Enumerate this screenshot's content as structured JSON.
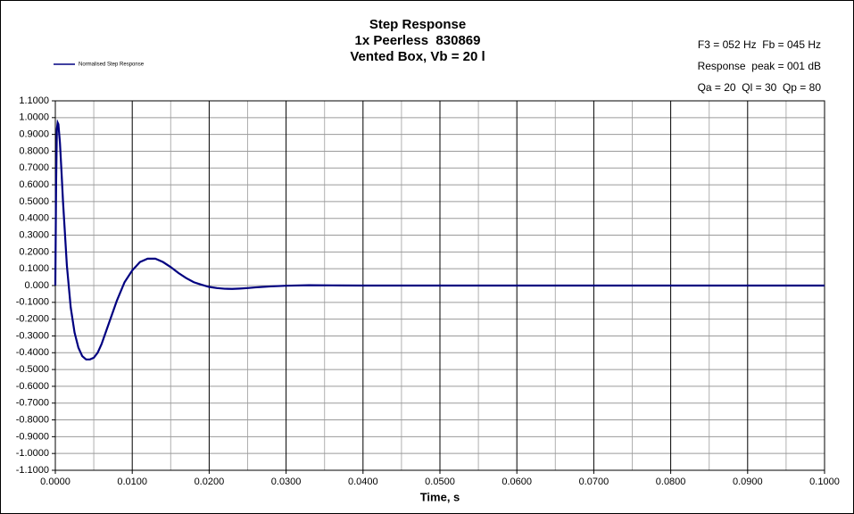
{
  "chart_data": {
    "type": "line",
    "title": [
      "Step Response",
      "1x Peerless  830869",
      "Vented Box, Vb = 20 l"
    ],
    "annotations": [
      "F3 = 052 Hz  Fb = 045 Hz",
      "Response  peak = 001 dB",
      "Qa = 20  Ql = 30  Qp = 80"
    ],
    "x_label": "Time, s",
    "legend": "top-left",
    "grid": true,
    "x": [
      0,
      0.0001,
      0.0002,
      0.0003,
      0.0004,
      0.0006,
      0.0008,
      0.001,
      0.0015,
      0.002,
      0.0025,
      0.003,
      0.0035,
      0.004,
      0.0045,
      0.005,
      0.0055,
      0.006,
      0.007,
      0.008,
      0.009,
      0.01,
      0.011,
      0.012,
      0.013,
      0.014,
      0.015,
      0.016,
      0.017,
      0.018,
      0.019,
      0.02,
      0.021,
      0.022,
      0.023,
      0.024,
      0.025,
      0.026,
      0.028,
      0.03,
      0.033,
      0.036,
      0.04,
      0.05,
      0.06,
      0.07,
      0.08,
      0.09,
      0.1
    ],
    "series": [
      {
        "name": "Normalised Step Response",
        "color": "#000080",
        "values": [
          0,
          0.6,
          0.93,
          0.97,
          0.96,
          0.85,
          0.68,
          0.5,
          0.12,
          -0.13,
          -0.28,
          -0.37,
          -0.42,
          -0.44,
          -0.44,
          -0.43,
          -0.4,
          -0.35,
          -0.22,
          -0.09,
          0.02,
          0.09,
          0.14,
          0.16,
          0.16,
          0.14,
          0.11,
          0.075,
          0.045,
          0.02,
          0.005,
          -0.008,
          -0.015,
          -0.019,
          -0.02,
          -0.018,
          -0.015,
          -0.011,
          -0.005,
          -0.001,
          0.002,
          0.001,
          0,
          0,
          0,
          0,
          0,
          0,
          0
        ]
      }
    ],
    "xlim": [
      0,
      0.1
    ],
    "ylim": [
      -1.1,
      1.1
    ],
    "xticks": [
      {
        "value": 0,
        "label": "0.0000"
      },
      {
        "value": 0.01,
        "label": "0.0100"
      },
      {
        "value": 0.02,
        "label": "0.0200"
      },
      {
        "value": 0.03,
        "label": "0.0300"
      },
      {
        "value": 0.04,
        "label": "0.0400"
      },
      {
        "value": 0.05,
        "label": "0.0500"
      },
      {
        "value": 0.06,
        "label": "0.0600"
      },
      {
        "value": 0.07,
        "label": "0.0700"
      },
      {
        "value": 0.08,
        "label": "0.0800"
      },
      {
        "value": 0.09,
        "label": "0.0900"
      },
      {
        "value": 0.1,
        "label": "0.1000"
      }
    ],
    "x_minor_ticks": [
      0.005,
      0.015,
      0.025,
      0.035,
      0.045,
      0.055,
      0.065,
      0.075,
      0.085,
      0.095
    ],
    "yticks": [
      {
        "value": 1.1,
        "label": "1.1000"
      },
      {
        "value": 1.0,
        "label": "1.0000"
      },
      {
        "value": 0.9,
        "label": "0.9000"
      },
      {
        "value": 0.8,
        "label": "0.8000"
      },
      {
        "value": 0.7,
        "label": "0.7000"
      },
      {
        "value": 0.6,
        "label": "0.6000"
      },
      {
        "value": 0.5,
        "label": "0.5000"
      },
      {
        "value": 0.4,
        "label": "0.4000"
      },
      {
        "value": 0.3,
        "label": "0.3000"
      },
      {
        "value": 0.2,
        "label": "0.2000"
      },
      {
        "value": 0.1,
        "label": "0.1000"
      },
      {
        "value": 0,
        "label": "0.000"
      },
      {
        "value": -0.1,
        "label": "-0.1000"
      },
      {
        "value": -0.2,
        "label": "-0.2000"
      },
      {
        "value": -0.3,
        "label": "-0.3000"
      },
      {
        "value": -0.4,
        "label": "-0.4000"
      },
      {
        "value": -0.5,
        "label": "-0.5000"
      },
      {
        "value": -0.6,
        "label": "-0.6000"
      },
      {
        "value": -0.7,
        "label": "-0.7000"
      },
      {
        "value": -0.8,
        "label": "-0.8000"
      },
      {
        "value": -0.9,
        "label": "-0.9000"
      },
      {
        "value": -1.0,
        "label": "-1.0000"
      },
      {
        "value": -1.1,
        "label": "-1.1000"
      }
    ]
  }
}
